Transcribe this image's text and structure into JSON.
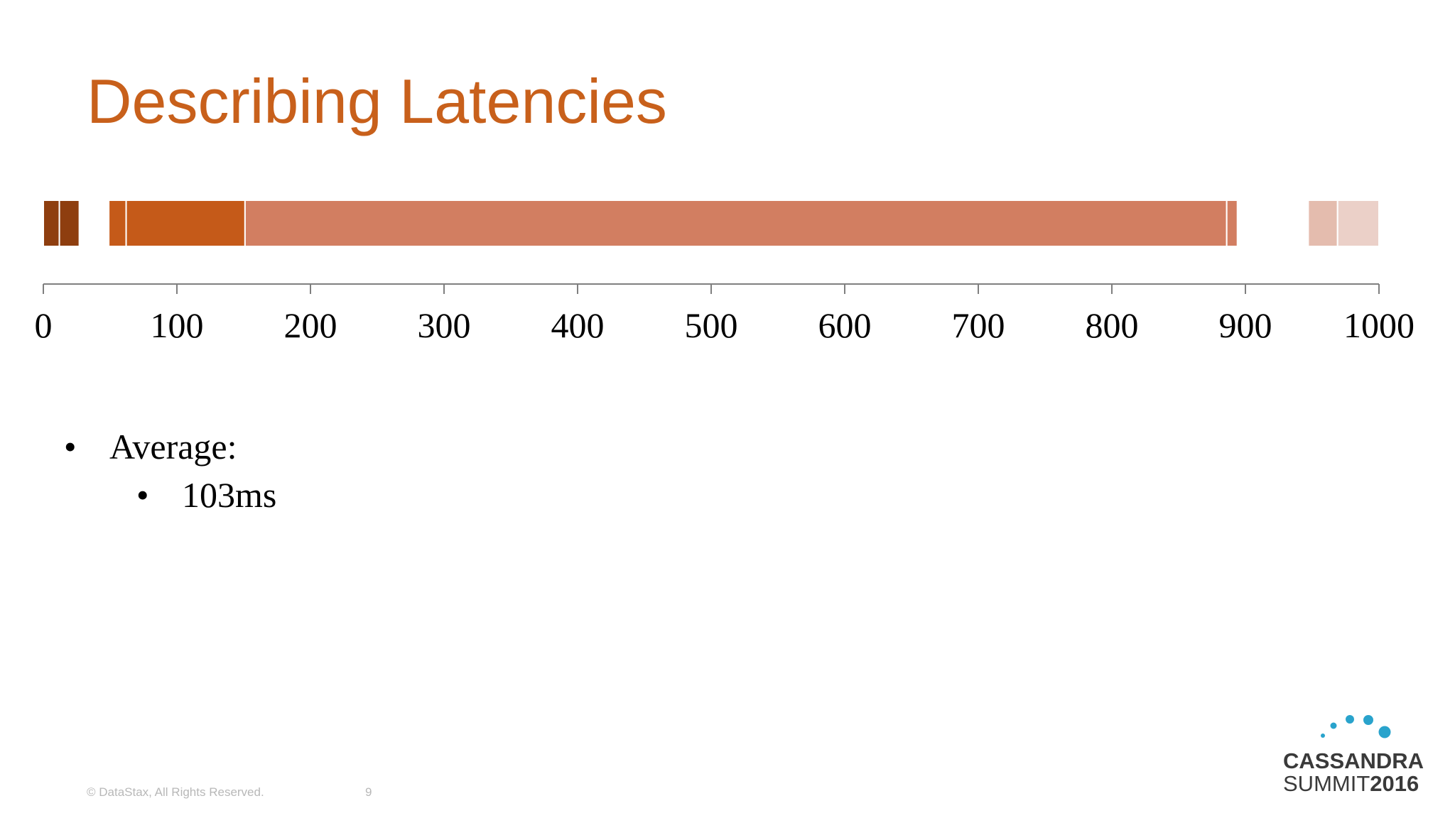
{
  "slide": {
    "title": "Describing Latencies",
    "bullets": {
      "l1": "Average:",
      "l2": "103ms",
      "marker": "•"
    },
    "footer": {
      "copyright": "© DataStax, All Rights Reserved.",
      "page_number": "9"
    },
    "logo": {
      "line1": "CASSANDRA",
      "line2_a": "SUMMIT",
      "line2_b": "2016",
      "dot_color": "#29a3cc"
    },
    "colors": {
      "title": "#c8601b"
    }
  },
  "chart_data": {
    "type": "bar",
    "orientation": "horizontal",
    "xlim": [
      0,
      1000
    ],
    "ticks": [
      "0",
      "100",
      "200",
      "300",
      "400",
      "500",
      "600",
      "700",
      "800",
      "900",
      "1000"
    ],
    "tick_values": [
      0,
      100,
      200,
      300,
      400,
      500,
      600,
      700,
      800,
      900,
      1000
    ],
    "segments": [
      {
        "start": 0,
        "end": 12,
        "color": "#8e3e0f"
      },
      {
        "start": 12,
        "end": 27,
        "color": "#8e3e0f"
      },
      {
        "start": 27,
        "end": 28,
        "color": "#8e3e0f"
      },
      {
        "start": 49,
        "end": 62,
        "color": "#c55a19"
      },
      {
        "start": 62,
        "end": 151,
        "color": "#c55a19"
      },
      {
        "start": 151,
        "end": 886,
        "color": "#d27e61"
      },
      {
        "start": 886,
        "end": 894,
        "color": "#d27e61"
      },
      {
        "start": 947,
        "end": 969,
        "color": "#e4bcae"
      },
      {
        "start": 969,
        "end": 1000,
        "color": "#ebd0c8"
      }
    ]
  }
}
